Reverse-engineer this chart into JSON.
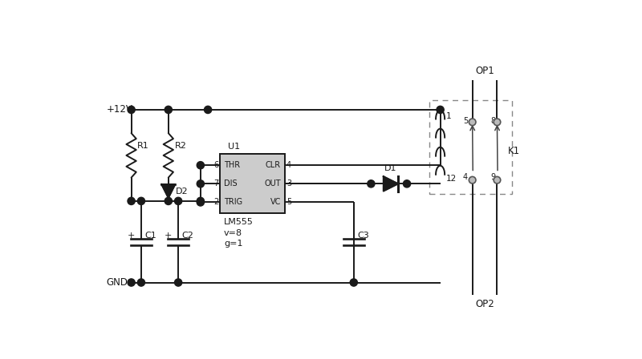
{
  "bg_color": "#ffffff",
  "line_color": "#1a1a1a",
  "line_width": 1.4,
  "dot_color": "#1a1a1a",
  "ic_fill": "#cccccc",
  "figsize": [
    8.0,
    4.48
  ],
  "dpi": 100,
  "xlim": [
    0,
    20
  ],
  "ylim": [
    0,
    11.2
  ]
}
